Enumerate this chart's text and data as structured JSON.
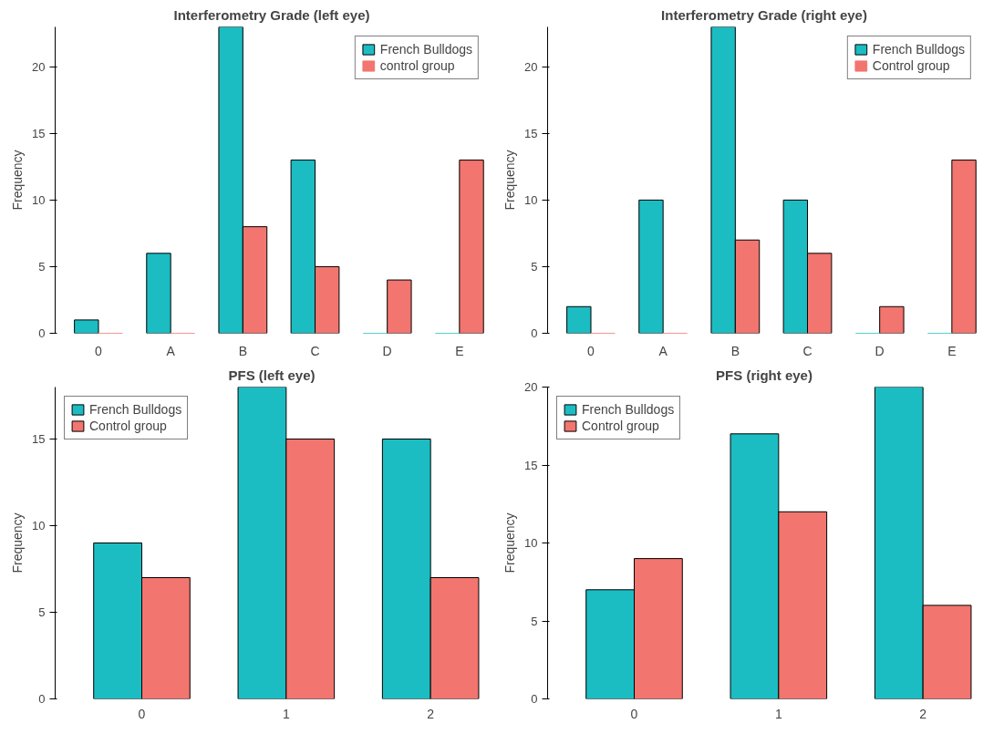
{
  "chart_data": [
    {
      "type": "bar",
      "title": "Interferometry Grade (left eye)",
      "ylabel": "Frequency",
      "categories": [
        "0",
        "A",
        "B",
        "C",
        "D",
        "E"
      ],
      "series": [
        {
          "name": "French Bulldogs",
          "color": "#1bbdc2",
          "values": [
            1,
            6,
            23,
            13,
            0,
            0
          ]
        },
        {
          "name": "control group",
          "color": "#f2756f",
          "values": [
            0,
            0,
            8,
            5,
            4,
            13
          ]
        }
      ],
      "ylim": [
        0,
        23
      ],
      "yticks": [
        0,
        5,
        10,
        15,
        20
      ],
      "legend": "top right",
      "grid": false
    },
    {
      "type": "bar",
      "title": "Interferometry Grade (right eye)",
      "ylabel": "Frequency",
      "categories": [
        "0",
        "A",
        "B",
        "C",
        "D",
        "E"
      ],
      "series": [
        {
          "name": "French Bulldogs",
          "color": "#1bbdc2",
          "values": [
            2,
            10,
            23,
            10,
            0,
            0
          ]
        },
        {
          "name": "Control group",
          "color": "#f2756f",
          "values": [
            0,
            0,
            7,
            6,
            2,
            13
          ]
        }
      ],
      "ylim": [
        0,
        23
      ],
      "yticks": [
        0,
        5,
        10,
        15,
        20
      ],
      "legend": "top right",
      "grid": false
    },
    {
      "type": "bar",
      "title": "PFS (left eye)",
      "ylabel": "Frequency",
      "categories": [
        "0",
        "1",
        "2"
      ],
      "series": [
        {
          "name": "French Bulldogs",
          "color": "#1bbdc2",
          "values": [
            9,
            18,
            15
          ]
        },
        {
          "name": "Control group",
          "color": "#f2756f",
          "values": [
            7,
            15,
            7
          ]
        }
      ],
      "ylim": [
        0,
        18
      ],
      "yticks": [
        0,
        5,
        10,
        15
      ],
      "legend": "top left",
      "grid": false
    },
    {
      "type": "bar",
      "title": "PFS (right eye)",
      "ylabel": "Frequency",
      "categories": [
        "0",
        "1",
        "2"
      ],
      "series": [
        {
          "name": "French Bulldogs",
          "color": "#1bbdc2",
          "values": [
            7,
            17,
            20
          ]
        },
        {
          "name": "Control group",
          "color": "#f2756f",
          "values": [
            9,
            12,
            6
          ]
        }
      ],
      "ylim": [
        0,
        20
      ],
      "yticks": [
        0,
        5,
        10,
        15,
        20
      ],
      "legend": "top left",
      "grid": false
    }
  ]
}
